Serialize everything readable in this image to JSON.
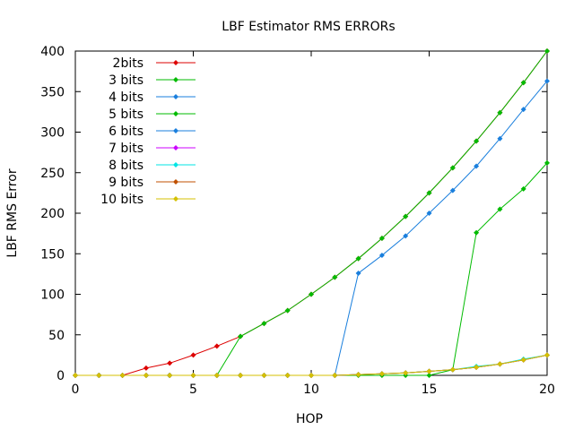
{
  "chart_data": {
    "type": "line",
    "title": "LBF Estimator RMS ERRORs",
    "xlabel": "HOP",
    "ylabel": "LBF RMS Error",
    "xlim": [
      0,
      20
    ],
    "ylim": [
      0,
      400
    ],
    "xticks": [
      0,
      5,
      10,
      15,
      20
    ],
    "yticks": [
      0,
      50,
      100,
      150,
      200,
      250,
      300,
      350,
      400
    ],
    "grid": false,
    "legend_position": "top-left",
    "x": [
      0,
      1,
      2,
      3,
      4,
      5,
      6,
      7,
      8,
      9,
      10,
      11,
      12,
      13,
      14,
      15,
      16,
      17,
      18,
      19,
      20
    ],
    "series": [
      {
        "name": "2bits",
        "color": "#dd0000",
        "marker": "diamond",
        "values": [
          0,
          0,
          0,
          9,
          15,
          25,
          36,
          48,
          64,
          80,
          100,
          121,
          144,
          169,
          196,
          225,
          256,
          289,
          324,
          361,
          400
        ]
      },
      {
        "name": "3 bits",
        "color": "#00bb00",
        "marker": "diamond",
        "values": [
          0,
          0,
          0,
          0,
          0,
          0,
          0,
          48,
          64,
          80,
          100,
          121,
          144,
          169,
          196,
          225,
          256,
          289,
          324,
          361,
          400
        ]
      },
      {
        "name": "4 bits",
        "color": "#1a7fdd",
        "marker": "diamond",
        "values": [
          0,
          0,
          0,
          0,
          0,
          0,
          0,
          0,
          0,
          0,
          0,
          0,
          126,
          148,
          172,
          200,
          228,
          258,
          292,
          328,
          363
        ]
      },
      {
        "name": "5 bits",
        "color": "#00bb00",
        "marker": "diamond",
        "values": [
          0,
          0,
          0,
          0,
          0,
          0,
          0,
          0,
          0,
          0,
          0,
          0,
          0,
          0,
          0,
          0,
          7,
          176,
          205,
          230,
          262
        ]
      },
      {
        "name": "6 bits",
        "color": "#1a7fdd",
        "marker": "diamond",
        "values": [
          0,
          0,
          0,
          0,
          0,
          0,
          0,
          0,
          0,
          0,
          0,
          0,
          1,
          2,
          3,
          5,
          7,
          10,
          14,
          19,
          25
        ]
      },
      {
        "name": "7 bits",
        "color": "#cc00ff",
        "marker": "diamond",
        "values": [
          0,
          0,
          0,
          0,
          0,
          0,
          0,
          0,
          0,
          0,
          0,
          0,
          1,
          2,
          3,
          5,
          7,
          10,
          14,
          19,
          25
        ]
      },
      {
        "name": "8 bits",
        "color": "#00e5e5",
        "marker": "diamond",
        "values": [
          0,
          0,
          0,
          0,
          0,
          0,
          0,
          0,
          0,
          0,
          0,
          0,
          1,
          2,
          3,
          5,
          7,
          11,
          14,
          20,
          25
        ]
      },
      {
        "name": "9 bits",
        "color": "#c05000",
        "marker": "diamond",
        "values": [
          0,
          0,
          0,
          0,
          0,
          0,
          0,
          0,
          0,
          0,
          0,
          0,
          1,
          2,
          3,
          5,
          7,
          10,
          14,
          19,
          25
        ]
      },
      {
        "name": "10 bits",
        "color": "#d4c000",
        "marker": "diamond",
        "values": [
          0,
          0,
          0,
          0,
          0,
          0,
          0,
          0,
          0,
          0,
          0,
          0,
          1,
          2,
          3,
          5,
          7,
          10,
          14,
          19,
          25
        ]
      }
    ]
  }
}
